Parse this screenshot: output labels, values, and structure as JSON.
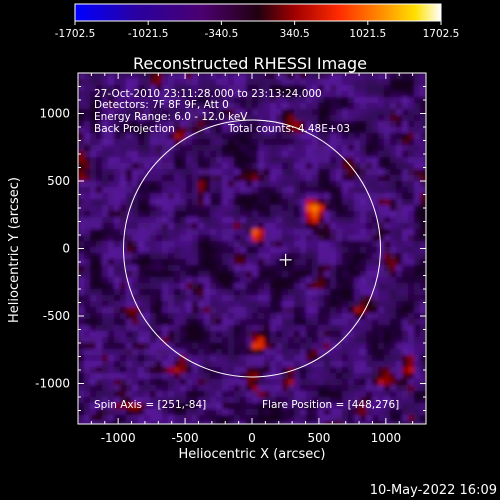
{
  "colorbar": {
    "tick_labels": [
      "-1702.5",
      "-1021.5",
      "-340.5",
      "340.5",
      "1021.5",
      "1702.5"
    ],
    "range": [
      -1702.5,
      1702.5
    ],
    "colormap": [
      "#0000ff",
      "#4b0082",
      "#8b0000",
      "#ff2000",
      "#ff8c00",
      "#ffd800",
      "#ffffff"
    ]
  },
  "chart_data": {
    "type": "heatmap",
    "title": "Reconstructed RHESSI Image",
    "xlabel": "Heliocentric X (arcsec)",
    "ylabel": "Heliocentric Y (arcsec)",
    "xlim": [
      -1300,
      1300
    ],
    "ylim": [
      -1300,
      1300
    ],
    "x_ticks": [
      "-1000",
      "-500",
      "0",
      "500",
      "1000"
    ],
    "y_ticks": [
      "-1000",
      "-500",
      "0",
      "500",
      "1000"
    ],
    "solar_limb_radius_arcsec": 960,
    "spin_axis": [
      251,
      -84
    ],
    "flare_position": [
      448,
      276
    ],
    "bright_sources": [
      {
        "x": 448,
        "y": 276,
        "level": 1700
      },
      {
        "x": 60,
        "y": 100,
        "level": 1100
      },
      {
        "x": 50,
        "y": -720,
        "level": 900
      }
    ]
  },
  "annotations": {
    "time_range": "27-Oct-2010 23:11:28.000 to 23:13:24.000",
    "detectors": "Detectors: 7F 8F 9F, Att 0",
    "energy": "Energy Range: 6.0 - 12.0 keV",
    "method": "Back Projection",
    "counts": "Total counts: 4.48E+03",
    "spin_axis_text": "Spin Axis = [251,-84]",
    "flare_position_text": "Flare Position = [448,276]"
  },
  "footer": {
    "date": "10-May-2022 16:09"
  }
}
